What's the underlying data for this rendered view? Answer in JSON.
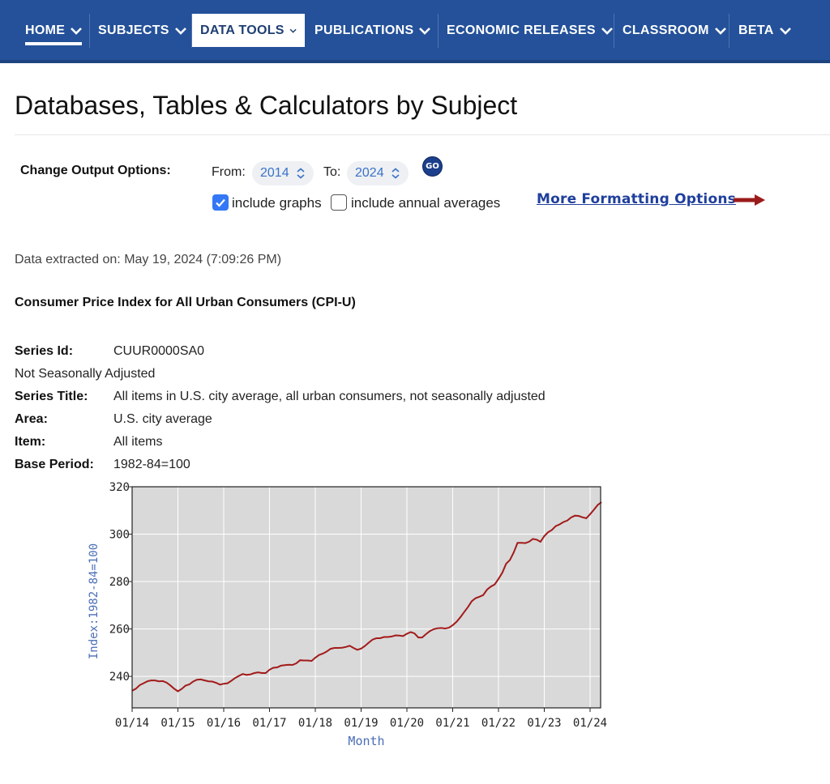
{
  "nav": {
    "items": [
      {
        "label": "HOME",
        "active_underline": true
      },
      {
        "label": "SUBJECTS"
      },
      {
        "label": "DATA TOOLS",
        "selected": true
      },
      {
        "label": "PUBLICATIONS"
      },
      {
        "label": "ECONOMIC RELEASES"
      },
      {
        "label": "CLASSROOM"
      },
      {
        "label": "BETA"
      }
    ],
    "colors": {
      "background": "#245199",
      "text": "#ffffff"
    }
  },
  "page": {
    "title": "Databases, Tables & Calculators by Subject"
  },
  "options": {
    "label": "Change Output Options:",
    "from_label": "From:",
    "from_value": "2014",
    "to_label": "To:",
    "to_value": "2024",
    "go_label": "GO",
    "include_graphs_label": "include graphs",
    "include_graphs_checked": true,
    "include_annual_label": "include annual averages",
    "include_annual_checked": false,
    "more_link": "More Formatting Options"
  },
  "extracted": "Data extracted on: May 19, 2024 (7:09:26 PM)",
  "series": {
    "heading": "Consumer Price Index for All Urban Consumers (CPI-U)",
    "series_id_key": "Series Id:",
    "series_id_val": "CUUR0000SA0",
    "adjustment": "Not Seasonally Adjusted",
    "title_key": "Series Title:",
    "title_val": "All items in U.S. city average, all urban consumers, not seasonally adjusted",
    "area_key": "Area:",
    "area_val": "U.S. city average",
    "item_key": "Item:",
    "item_val": "All items",
    "base_key": "Base Period:",
    "base_val": "1982-84=100"
  },
  "chart_data": {
    "type": "line",
    "ylabel": "Index:1982-84=100",
    "xlabel": "Month",
    "ylim": [
      226.7,
      320
    ],
    "yticks": [
      240,
      260,
      280,
      300,
      320
    ],
    "xticks": [
      "01/14",
      "01/15",
      "01/16",
      "01/17",
      "01/18",
      "01/19",
      "01/20",
      "01/21",
      "01/22",
      "01/23",
      "01/24"
    ],
    "grid": true,
    "line_color": "#a31a1a",
    "plot_background": "#d9d9d9",
    "series": [
      {
        "x": [
          "01/14",
          "02/14",
          "03/14",
          "04/14",
          "05/14",
          "06/14",
          "07/14",
          "08/14",
          "09/14",
          "10/14",
          "11/14",
          "12/14",
          "01/15",
          "02/15",
          "03/15",
          "04/15",
          "05/15",
          "06/15",
          "07/15",
          "08/15",
          "09/15",
          "10/15",
          "11/15",
          "12/15",
          "01/16",
          "02/16",
          "03/16",
          "04/16",
          "05/16",
          "06/16",
          "07/16",
          "08/16",
          "09/16",
          "10/16",
          "11/16",
          "12/16",
          "01/17",
          "02/17",
          "03/17",
          "04/17",
          "05/17",
          "06/17",
          "07/17",
          "08/17",
          "09/17",
          "10/17",
          "11/17",
          "12/17",
          "01/18",
          "02/18",
          "03/18",
          "04/18",
          "05/18",
          "06/18",
          "07/18",
          "08/18",
          "09/18",
          "10/18",
          "11/18",
          "12/18",
          "01/19",
          "02/19",
          "03/19",
          "04/19",
          "05/19",
          "06/19",
          "07/19",
          "08/19",
          "09/19",
          "10/19",
          "11/19",
          "12/19",
          "01/20",
          "02/20",
          "03/20",
          "04/20",
          "05/20",
          "06/20",
          "07/20",
          "08/20",
          "09/20",
          "10/20",
          "11/20",
          "12/20",
          "01/21",
          "02/21",
          "03/21",
          "04/21",
          "05/21",
          "06/21",
          "07/21",
          "08/21",
          "09/21",
          "10/21",
          "11/21",
          "12/21",
          "01/22",
          "02/22",
          "03/22",
          "04/22",
          "05/22",
          "06/22",
          "07/22",
          "08/22",
          "09/22",
          "10/22",
          "11/22",
          "12/22",
          "01/23",
          "02/23",
          "03/23",
          "04/23",
          "05/23",
          "06/23",
          "07/23",
          "08/23",
          "09/23",
          "10/23",
          "11/23",
          "12/23",
          "01/24",
          "02/24",
          "03/24",
          "04/24"
        ],
        "values": [
          233.9,
          234.8,
          236.3,
          237.1,
          237.9,
          238.3,
          238.3,
          237.9,
          238.0,
          237.4,
          236.2,
          234.8,
          233.7,
          234.7,
          236.1,
          236.6,
          237.8,
          238.6,
          238.7,
          238.3,
          237.9,
          237.8,
          237.3,
          236.5,
          236.9,
          237.1,
          238.1,
          239.3,
          240.2,
          241.0,
          240.6,
          240.8,
          241.4,
          241.7,
          241.4,
          241.4,
          242.8,
          243.6,
          243.8,
          244.5,
          244.7,
          244.9,
          244.8,
          245.5,
          246.8,
          246.7,
          246.7,
          246.5,
          247.9,
          249.0,
          249.6,
          250.5,
          251.6,
          251.99,
          252.0,
          252.1,
          252.4,
          252.9,
          252.0,
          251.2,
          251.7,
          252.8,
          254.2,
          255.5,
          256.1,
          256.1,
          256.6,
          256.6,
          256.8,
          257.3,
          257.2,
          256.97,
          257.97,
          258.7,
          258.1,
          256.4,
          256.4,
          257.8,
          259.1,
          259.9,
          260.3,
          260.4,
          260.2,
          260.5,
          261.6,
          263.0,
          264.9,
          267.1,
          269.2,
          271.7,
          273.0,
          273.6,
          274.3,
          276.6,
          277.9,
          278.8,
          281.1,
          283.7,
          287.5,
          289.1,
          292.3,
          296.3,
          296.3,
          296.2,
          296.8,
          298.0,
          297.7,
          296.8,
          299.2,
          300.8,
          301.8,
          303.4,
          304.1,
          305.1,
          305.7,
          307.0,
          307.8,
          307.7,
          307.1,
          306.7,
          308.4,
          310.3,
          312.3,
          313.5
        ]
      }
    ]
  }
}
